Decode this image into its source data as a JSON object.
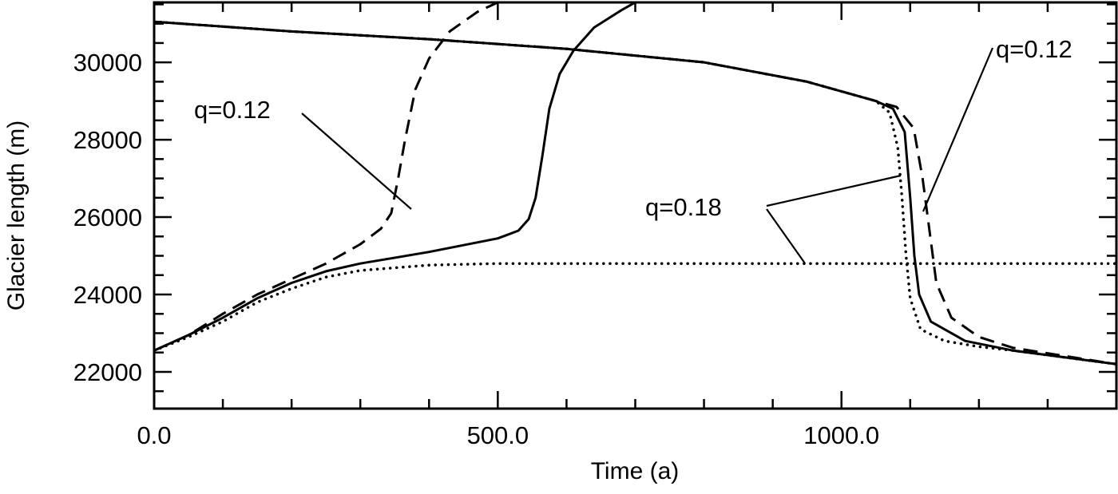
{
  "chart_data": {
    "type": "line",
    "title": "",
    "xlabel": "Time (a)",
    "ylabel": "Glacier length (m)",
    "xlim": [
      0,
      1400
    ],
    "ylim": [
      21050,
      31550
    ],
    "x_ticks": [
      0,
      500,
      1000
    ],
    "x_tick_labels": [
      "0.0",
      "500.0",
      "1000.0"
    ],
    "y_ticks": [
      22000,
      24000,
      26000,
      28000,
      30000
    ],
    "y_tick_labels": [
      "22000",
      "24000",
      "26000",
      "28000",
      "30000"
    ],
    "grid": false,
    "series": [
      {
        "name": "solid-advance",
        "style": "solid",
        "points": [
          [
            0,
            22550
          ],
          [
            50,
            22950
          ],
          [
            100,
            23400
          ],
          [
            150,
            23900
          ],
          [
            200,
            24300
          ],
          [
            250,
            24600
          ],
          [
            300,
            24800
          ],
          [
            400,
            25100
          ],
          [
            500,
            25450
          ],
          [
            530,
            25650
          ],
          [
            545,
            25950
          ],
          [
            555,
            26500
          ],
          [
            565,
            27600
          ],
          [
            575,
            28800
          ],
          [
            590,
            29700
          ],
          [
            610,
            30300
          ],
          [
            640,
            30900
          ],
          [
            680,
            31350
          ],
          [
            700,
            31550
          ]
        ]
      },
      {
        "name": "dashed-advance",
        "style": "dashed",
        "points": [
          [
            0,
            22550
          ],
          [
            50,
            22950
          ],
          [
            100,
            23500
          ],
          [
            150,
            24000
          ],
          [
            200,
            24400
          ],
          [
            250,
            24800
          ],
          [
            300,
            25300
          ],
          [
            330,
            25700
          ],
          [
            345,
            26100
          ],
          [
            355,
            27000
          ],
          [
            365,
            28000
          ],
          [
            380,
            29300
          ],
          [
            400,
            30100
          ],
          [
            430,
            30800
          ],
          [
            470,
            31300
          ],
          [
            500,
            31550
          ]
        ]
      },
      {
        "name": "dotted-advance",
        "style": "dotted",
        "points": [
          [
            0,
            22550
          ],
          [
            50,
            22900
          ],
          [
            100,
            23300
          ],
          [
            150,
            23800
          ],
          [
            200,
            24150
          ],
          [
            250,
            24450
          ],
          [
            300,
            24620
          ],
          [
            400,
            24760
          ],
          [
            500,
            24800
          ],
          [
            1400,
            24800
          ]
        ]
      },
      {
        "name": "dotted-retreat",
        "style": "dotted",
        "points": [
          [
            0,
            31050
          ],
          [
            200,
            30800
          ],
          [
            400,
            30600
          ],
          [
            600,
            30350
          ],
          [
            800,
            30000
          ],
          [
            950,
            29500
          ],
          [
            1050,
            29000
          ],
          [
            1070,
            28700
          ],
          [
            1082,
            27800
          ],
          [
            1088,
            26500
          ],
          [
            1094,
            25000
          ],
          [
            1100,
            23900
          ],
          [
            1115,
            23100
          ],
          [
            1150,
            22800
          ],
          [
            1200,
            22650
          ],
          [
            1250,
            22550
          ],
          [
            1400,
            22200
          ]
        ]
      },
      {
        "name": "solid-retreat",
        "style": "solid",
        "points": [
          [
            0,
            31050
          ],
          [
            200,
            30800
          ],
          [
            400,
            30600
          ],
          [
            600,
            30350
          ],
          [
            800,
            30000
          ],
          [
            950,
            29500
          ],
          [
            1050,
            29000
          ],
          [
            1075,
            28800
          ],
          [
            1092,
            28200
          ],
          [
            1100,
            26500
          ],
          [
            1106,
            25000
          ],
          [
            1113,
            24000
          ],
          [
            1130,
            23300
          ],
          [
            1180,
            22800
          ],
          [
            1250,
            22550
          ],
          [
            1400,
            22200
          ]
        ]
      },
      {
        "name": "dashed-retreat",
        "style": "dashed",
        "points": [
          [
            0,
            31050
          ],
          [
            200,
            30800
          ],
          [
            400,
            30600
          ],
          [
            600,
            30350
          ],
          [
            800,
            30000
          ],
          [
            950,
            29500
          ],
          [
            1050,
            29000
          ],
          [
            1080,
            28850
          ],
          [
            1105,
            28300
          ],
          [
            1118,
            27000
          ],
          [
            1127,
            25800
          ],
          [
            1138,
            24300
          ],
          [
            1160,
            23400
          ],
          [
            1200,
            22900
          ],
          [
            1250,
            22620
          ],
          [
            1400,
            22200
          ]
        ]
      }
    ],
    "annotations": [
      {
        "text": "q=0.12",
        "target": "dashed-advance"
      },
      {
        "text": "q=0.12",
        "target": "dashed-retreat"
      },
      {
        "text": "q=0.18",
        "target": "dotted"
      }
    ]
  }
}
